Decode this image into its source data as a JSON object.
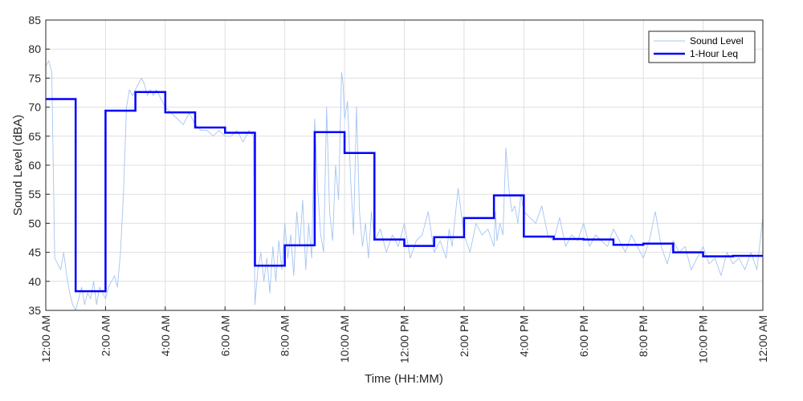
{
  "chart_data": {
    "type": "line",
    "xlabel": "Time (HH:MM)",
    "ylabel": "Sound Level (dBA)",
    "xlim": [
      0,
      24
    ],
    "ylim": [
      35,
      85
    ],
    "y_ticks": [
      35,
      40,
      45,
      50,
      55,
      60,
      65,
      70,
      75,
      80,
      85
    ],
    "x_ticks": [
      {
        "hour": 0,
        "label": "12:00 AM"
      },
      {
        "hour": 2,
        "label": "2:00 AM"
      },
      {
        "hour": 4,
        "label": "4:00 AM"
      },
      {
        "hour": 6,
        "label": "6:00 AM"
      },
      {
        "hour": 8,
        "label": "8:00 AM"
      },
      {
        "hour": 10,
        "label": "10:00 AM"
      },
      {
        "hour": 12,
        "label": "12:00 PM"
      },
      {
        "hour": 14,
        "label": "2:00 PM"
      },
      {
        "hour": 16,
        "label": "4:00 PM"
      },
      {
        "hour": 18,
        "label": "6:00 PM"
      },
      {
        "hour": 20,
        "label": "8:00 PM"
      },
      {
        "hour": 22,
        "label": "10:00 PM"
      },
      {
        "hour": 24,
        "label": "12:00 AM"
      }
    ],
    "grid": true,
    "legend_position": "top-right",
    "series": [
      {
        "name": "Sound Level",
        "color": "#a6c4f2",
        "style": "thin",
        "x": [
          0,
          0.1,
          0.2,
          0.3,
          0.4,
          0.5,
          0.6,
          0.7,
          0.8,
          0.9,
          1.0,
          1.1,
          1.2,
          1.3,
          1.4,
          1.5,
          1.6,
          1.7,
          1.8,
          1.9,
          2.0,
          2.1,
          2.2,
          2.3,
          2.4,
          2.5,
          2.6,
          2.7,
          2.8,
          2.9,
          3.0,
          3.1,
          3.2,
          3.3,
          3.4,
          3.5,
          3.6,
          3.7,
          3.8,
          3.9,
          4.0,
          4.2,
          4.4,
          4.6,
          4.8,
          5.0,
          5.2,
          5.4,
          5.6,
          5.8,
          6.0,
          6.2,
          6.4,
          6.6,
          6.8,
          6.95,
          7.0,
          7.1,
          7.2,
          7.3,
          7.4,
          7.5,
          7.6,
          7.7,
          7.8,
          7.9,
          8.0,
          8.1,
          8.2,
          8.3,
          8.4,
          8.5,
          8.6,
          8.7,
          8.8,
          8.9,
          9.0,
          9.1,
          9.2,
          9.3,
          9.4,
          9.5,
          9.6,
          9.7,
          9.8,
          9.9,
          9.95,
          10.0,
          10.1,
          10.2,
          10.3,
          10.4,
          10.5,
          10.6,
          10.7,
          10.8,
          10.9,
          11.0,
          11.2,
          11.4,
          11.6,
          11.8,
          12.0,
          12.2,
          12.4,
          12.6,
          12.8,
          13.0,
          13.2,
          13.4,
          13.5,
          13.6,
          13.8,
          14.0,
          14.2,
          14.4,
          14.6,
          14.8,
          15.0,
          15.05,
          15.1,
          15.2,
          15.3,
          15.4,
          15.5,
          15.6,
          15.7,
          15.8,
          15.9,
          16.0,
          16.2,
          16.4,
          16.6,
          16.8,
          17.0,
          17.2,
          17.4,
          17.6,
          17.8,
          18.0,
          18.2,
          18.4,
          18.6,
          18.8,
          19.0,
          19.2,
          19.4,
          19.6,
          19.8,
          20.0,
          20.2,
          20.4,
          20.6,
          20.8,
          21.0,
          21.2,
          21.4,
          21.6,
          21.8,
          22.0,
          22.2,
          22.4,
          22.6,
          22.8,
          23.0,
          23.2,
          23.4,
          23.6,
          23.8,
          24.0
        ],
        "values": [
          77,
          78,
          76,
          44,
          43,
          42,
          45,
          41,
          38,
          36,
          35,
          37,
          39,
          36,
          38,
          37,
          40,
          36,
          39,
          38,
          37,
          39,
          40,
          41,
          39,
          45,
          55,
          70,
          73,
          72,
          73,
          74,
          75,
          74,
          72,
          73,
          72,
          73,
          72,
          71,
          70,
          69,
          68,
          67,
          69,
          67,
          66,
          66,
          65,
          66,
          65,
          65,
          66,
          64,
          66,
          65,
          36,
          42,
          45,
          40,
          44,
          38,
          46,
          40,
          47,
          42,
          50,
          44,
          48,
          41,
          52,
          46,
          54,
          42,
          50,
          44,
          68,
          56,
          48,
          45,
          70,
          52,
          47,
          60,
          54,
          76,
          74,
          68,
          71,
          58,
          48,
          70,
          52,
          46,
          50,
          44,
          52,
          47,
          49,
          45,
          48,
          46,
          50,
          44,
          47,
          48,
          52,
          45,
          47,
          44,
          49,
          46,
          56,
          48,
          45,
          50,
          48,
          49,
          46,
          52,
          47,
          50,
          48,
          63,
          56,
          52,
          53,
          50,
          55,
          52,
          51,
          50,
          53,
          48,
          47,
          51,
          46,
          48,
          47,
          50,
          46,
          48,
          47,
          46,
          49,
          47,
          45,
          48,
          46,
          44,
          47,
          52,
          46,
          43,
          47,
          45,
          46,
          42,
          44,
          46,
          43,
          44,
          41,
          45,
          43,
          44,
          42,
          45,
          42,
          51
        ]
      },
      {
        "name": "1-Hour Leq",
        "color": "#0000ff",
        "style": "step",
        "x": [
          0,
          1,
          2,
          3,
          4,
          5,
          6,
          7,
          8,
          9,
          10,
          11,
          12,
          13,
          14,
          15,
          16,
          17,
          18,
          19,
          20,
          21,
          22,
          23
        ],
        "values": [
          71.4,
          38.3,
          69.4,
          72.6,
          69.1,
          66.5,
          65.6,
          42.7,
          46.2,
          65.7,
          62.1,
          47.2,
          46.1,
          47.6,
          50.9,
          54.8,
          47.7,
          47.3,
          47.2,
          46.3,
          46.5,
          45.0,
          44.3,
          44.4
        ]
      }
    ]
  }
}
